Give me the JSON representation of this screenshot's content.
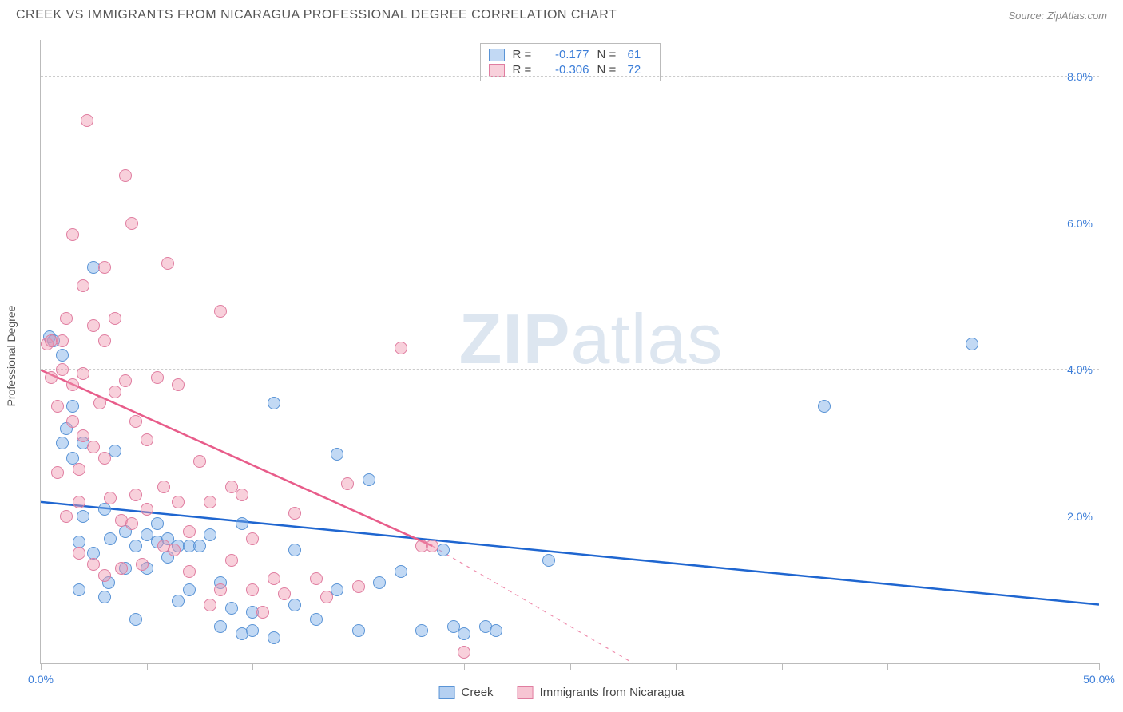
{
  "header": {
    "title": "CREEK VS IMMIGRANTS FROM NICARAGUA PROFESSIONAL DEGREE CORRELATION CHART",
    "source": "Source: ZipAtlas.com"
  },
  "watermark": {
    "part1": "ZIP",
    "part2": "atlas"
  },
  "chart": {
    "type": "scatter",
    "ylabel": "Professional Degree",
    "xlim": [
      0,
      50
    ],
    "ylim": [
      0,
      8.5
    ],
    "xtick_positions": [
      0,
      5,
      10,
      15,
      20,
      25,
      30,
      35,
      40,
      45,
      50
    ],
    "xtick_labels": {
      "0": "0.0%",
      "50": "50.0%"
    },
    "ytick_positions": [
      2,
      4,
      6,
      8
    ],
    "ytick_labels": [
      "2.0%",
      "4.0%",
      "6.0%",
      "8.0%"
    ],
    "background_color": "#ffffff",
    "grid_color": "#cccccc",
    "axis_color": "#bbbbbb",
    "tick_label_color": "#3b7dd8",
    "point_radius": 8,
    "series": [
      {
        "name": "Creek",
        "fill": "rgba(120,170,230,0.45)",
        "stroke": "#5a94d6",
        "trend_color": "#1f66d0",
        "trend": {
          "x1": 0,
          "y1": 2.2,
          "x2": 50,
          "y2": 0.8
        },
        "R": "-0.177",
        "N": "61",
        "points": [
          [
            0.4,
            4.45
          ],
          [
            0.6,
            4.4
          ],
          [
            1.0,
            3.0
          ],
          [
            1.0,
            4.2
          ],
          [
            1.2,
            3.2
          ],
          [
            1.5,
            2.8
          ],
          [
            1.5,
            3.5
          ],
          [
            1.8,
            1.0
          ],
          [
            1.8,
            1.65
          ],
          [
            2.0,
            2.0
          ],
          [
            2.0,
            3.0
          ],
          [
            2.5,
            1.5
          ],
          [
            2.5,
            5.4
          ],
          [
            3.0,
            0.9
          ],
          [
            3.0,
            2.1
          ],
          [
            3.2,
            1.1
          ],
          [
            3.3,
            1.7
          ],
          [
            3.5,
            2.9
          ],
          [
            4.0,
            1.3
          ],
          [
            4.0,
            1.8
          ],
          [
            4.5,
            0.6
          ],
          [
            4.5,
            1.6
          ],
          [
            5.0,
            1.3
          ],
          [
            5.0,
            1.75
          ],
          [
            5.5,
            1.9
          ],
          [
            5.5,
            1.65
          ],
          [
            6.0,
            1.45
          ],
          [
            6.0,
            1.7
          ],
          [
            6.5,
            0.85
          ],
          [
            6.5,
            1.6
          ],
          [
            7.0,
            1.0
          ],
          [
            7.0,
            1.6
          ],
          [
            7.5,
            1.6
          ],
          [
            8.0,
            1.75
          ],
          [
            8.5,
            0.5
          ],
          [
            8.5,
            1.1
          ],
          [
            9.0,
            0.75
          ],
          [
            9.5,
            0.4
          ],
          [
            9.5,
            1.9
          ],
          [
            10.0,
            0.45
          ],
          [
            10.0,
            0.7
          ],
          [
            11.0,
            3.55
          ],
          [
            11.0,
            0.35
          ],
          [
            12.0,
            1.55
          ],
          [
            12.0,
            0.8
          ],
          [
            13.0,
            0.6
          ],
          [
            14.0,
            2.85
          ],
          [
            14.0,
            1.0
          ],
          [
            15.0,
            0.45
          ],
          [
            15.5,
            2.5
          ],
          [
            16.0,
            1.1
          ],
          [
            17.0,
            1.25
          ],
          [
            18.0,
            0.45
          ],
          [
            19.0,
            1.55
          ],
          [
            19.5,
            0.5
          ],
          [
            20.0,
            0.4
          ],
          [
            21.0,
            0.5
          ],
          [
            21.5,
            0.45
          ],
          [
            24.0,
            1.4
          ],
          [
            37.0,
            3.5
          ],
          [
            44.0,
            4.35
          ]
        ]
      },
      {
        "name": "Immigrants from Nicaragua",
        "fill": "rgba(240,150,175,0.45)",
        "stroke": "#e07da0",
        "trend_color": "#e85c8a",
        "trend": {
          "x1": 0,
          "y1": 4.0,
          "x2": 18.5,
          "y2": 1.6
        },
        "trend_dash": {
          "x1": 18.5,
          "y1": 1.6,
          "x2": 28,
          "y2": 0
        },
        "R": "-0.306",
        "N": "72",
        "points": [
          [
            0.3,
            4.35
          ],
          [
            0.5,
            3.9
          ],
          [
            0.5,
            4.4
          ],
          [
            0.8,
            2.6
          ],
          [
            0.8,
            3.5
          ],
          [
            1.0,
            4.0
          ],
          [
            1.0,
            4.4
          ],
          [
            1.2,
            2.0
          ],
          [
            1.2,
            4.7
          ],
          [
            1.5,
            3.3
          ],
          [
            1.5,
            3.8
          ],
          [
            1.5,
            5.85
          ],
          [
            1.8,
            1.5
          ],
          [
            1.8,
            2.2
          ],
          [
            1.8,
            2.65
          ],
          [
            2.0,
            3.1
          ],
          [
            2.0,
            3.95
          ],
          [
            2.0,
            5.15
          ],
          [
            2.2,
            7.4
          ],
          [
            2.5,
            1.35
          ],
          [
            2.5,
            2.95
          ],
          [
            2.5,
            4.6
          ],
          [
            2.8,
            3.55
          ],
          [
            3.0,
            1.2
          ],
          [
            3.0,
            2.8
          ],
          [
            3.0,
            4.4
          ],
          [
            3.0,
            5.4
          ],
          [
            3.3,
            2.25
          ],
          [
            3.5,
            4.7
          ],
          [
            3.5,
            3.7
          ],
          [
            3.8,
            1.3
          ],
          [
            3.8,
            1.95
          ],
          [
            4.0,
            3.85
          ],
          [
            4.0,
            6.65
          ],
          [
            4.3,
            1.9
          ],
          [
            4.3,
            6.0
          ],
          [
            4.5,
            2.3
          ],
          [
            4.5,
            3.3
          ],
          [
            4.8,
            1.35
          ],
          [
            5.0,
            2.1
          ],
          [
            5.0,
            3.05
          ],
          [
            5.5,
            3.9
          ],
          [
            5.8,
            1.6
          ],
          [
            5.8,
            2.4
          ],
          [
            6.0,
            5.45
          ],
          [
            6.3,
            1.55
          ],
          [
            6.5,
            2.2
          ],
          [
            6.5,
            3.8
          ],
          [
            7.0,
            1.8
          ],
          [
            7.0,
            1.25
          ],
          [
            7.5,
            2.75
          ],
          [
            8.0,
            0.8
          ],
          [
            8.0,
            2.2
          ],
          [
            8.5,
            1.0
          ],
          [
            8.5,
            4.8
          ],
          [
            9.0,
            1.4
          ],
          [
            9.0,
            2.4
          ],
          [
            9.5,
            2.3
          ],
          [
            10.0,
            1.0
          ],
          [
            10.0,
            1.7
          ],
          [
            10.5,
            0.7
          ],
          [
            11.0,
            1.15
          ],
          [
            11.5,
            0.95
          ],
          [
            12.0,
            2.05
          ],
          [
            13.0,
            1.15
          ],
          [
            13.5,
            0.9
          ],
          [
            14.5,
            2.45
          ],
          [
            15.0,
            1.05
          ],
          [
            17.0,
            4.3
          ],
          [
            18.0,
            1.6
          ],
          [
            18.5,
            1.6
          ],
          [
            20.0,
            0.15
          ]
        ]
      }
    ]
  },
  "legend": {
    "items": [
      {
        "label": "Creek",
        "fill": "rgba(120,170,230,0.55)",
        "stroke": "#5a94d6"
      },
      {
        "label": "Immigrants from Nicaragua",
        "fill": "rgba(240,150,175,0.55)",
        "stroke": "#e07da0"
      }
    ]
  }
}
